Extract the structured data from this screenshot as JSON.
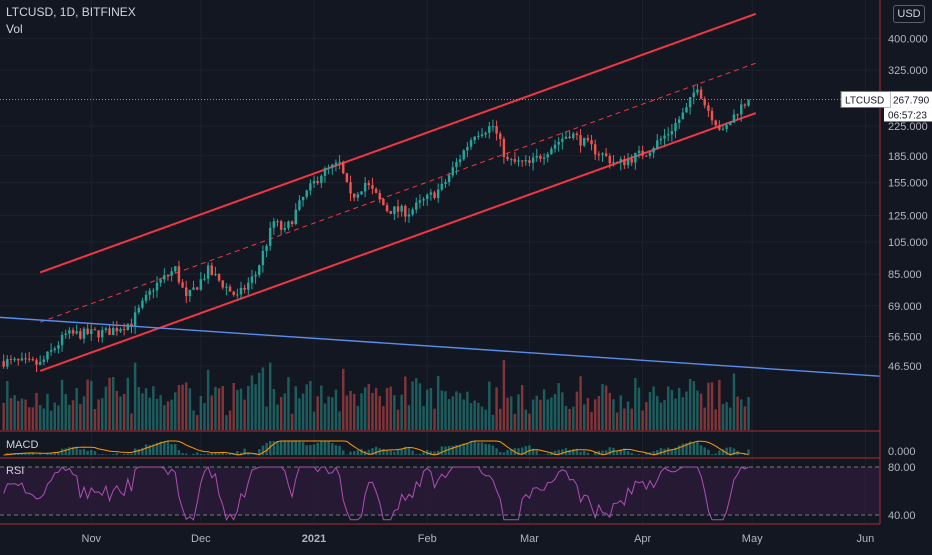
{
  "header": {
    "title": "LTCUSD, 1D, BITFINEX",
    "volume_label": "Vol",
    "currency_button": "USD"
  },
  "price_tag": {
    "symbol": "LTCUSD",
    "price": "267.790",
    "countdown": "06:57:23"
  },
  "indicators": {
    "macd_label": "MACD",
    "macd_value": "0.000",
    "rsi_label": "RSI",
    "rsi_levels": [
      "80.00",
      "40.00"
    ]
  },
  "colors": {
    "background": "#131722",
    "up": "#26a69a",
    "down": "#ef5350",
    "channel": "#f23645",
    "trendline": "#5b8def",
    "rsi_line": "#b04fb4",
    "rsi_band": "#2a1a3a"
  },
  "chart_data": {
    "type": "candlestick",
    "title": "LTCUSD, 1D, BITFINEX",
    "x_tick_labels": [
      "Nov",
      "Dec",
      "2021",
      "Feb",
      "Mar",
      "Apr",
      "May",
      "Jun"
    ],
    "y_tick_labels": [
      "46.500",
      "56.500",
      "69.000",
      "85.000",
      "105.000",
      "125.000",
      "155.000",
      "185.000",
      "225.000",
      "325.000",
      "400.000"
    ],
    "y_scale": "log",
    "x_range": [
      "2020-10-07",
      "2021-06-05"
    ],
    "anchor_prices": [
      [
        "2020-10-08",
        48
      ],
      [
        "2020-10-18",
        47
      ],
      [
        "2020-10-25",
        57
      ],
      [
        "2020-11-05",
        58
      ],
      [
        "2020-11-12",
        62
      ],
      [
        "2020-11-18",
        78
      ],
      [
        "2020-11-24",
        88
      ],
      [
        "2020-11-27",
        72
      ],
      [
        "2020-12-03",
        87
      ],
      [
        "2020-12-11",
        73
      ],
      [
        "2020-12-16",
        85
      ],
      [
        "2020-12-21",
        120
      ],
      [
        "2020-12-24",
        112
      ],
      [
        "2020-12-29",
        140
      ],
      [
        "2021-01-03",
        165
      ],
      [
        "2021-01-08",
        175
      ],
      [
        "2021-01-11",
        140
      ],
      [
        "2021-01-15",
        155
      ],
      [
        "2021-01-21",
        130
      ],
      [
        "2021-01-27",
        128
      ],
      [
        "2021-02-05",
        150
      ],
      [
        "2021-02-14",
        215
      ],
      [
        "2021-02-19",
        225
      ],
      [
        "2021-02-23",
        178
      ],
      [
        "2021-03-01",
        175
      ],
      [
        "2021-03-08",
        200
      ],
      [
        "2021-03-12",
        215
      ],
      [
        "2021-03-18",
        195
      ],
      [
        "2021-03-25",
        175
      ],
      [
        "2021-04-02",
        190
      ],
      [
        "2021-04-08",
        215
      ],
      [
        "2021-04-13",
        250
      ],
      [
        "2021-04-16",
        295
      ],
      [
        "2021-04-18",
        260
      ],
      [
        "2021-04-23",
        215
      ],
      [
        "2021-04-27",
        250
      ],
      [
        "2021-04-30",
        268
      ]
    ],
    "channel_lines": [
      {
        "name": "upper channel",
        "from": [
          "2020-10-18",
          86
        ],
        "to": [
          "2021-05-02",
          470
        ]
      },
      {
        "name": "channel middle",
        "from": [
          "2020-10-18",
          62
        ],
        "to": [
          "2021-05-02",
          340
        ]
      },
      {
        "name": "lower channel",
        "from": [
          "2020-10-18",
          45
        ],
        "to": [
          "2021-05-02",
          245
        ]
      }
    ],
    "trend_line": {
      "from": [
        "2020-10-07",
        64
      ],
      "to": [
        "2021-06-05",
        43.5
      ]
    },
    "last_price": 267.79
  }
}
